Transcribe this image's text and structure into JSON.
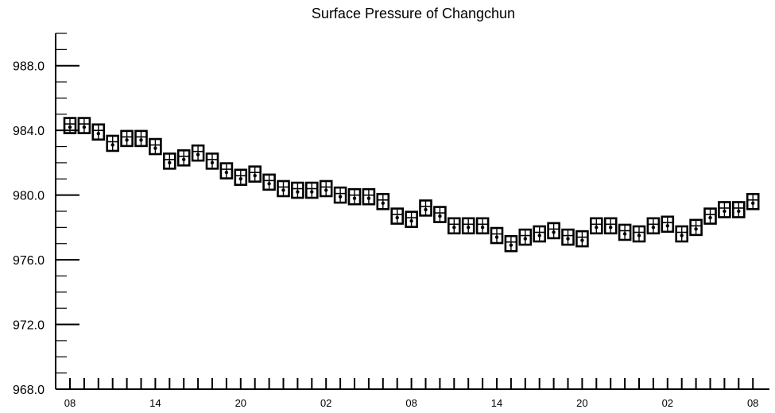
{
  "chart_data": {
    "type": "box",
    "title": "Surface Pressure of Changchun",
    "xlabel": "",
    "ylabel": "",
    "ylim": [
      968.0,
      990.0
    ],
    "yticks": [
      "968.0",
      "972.0",
      "976.0",
      "980.0",
      "984.0",
      "988.0"
    ],
    "xtick_labels": [
      "08",
      "14",
      "20",
      "02",
      "08",
      "14",
      "20",
      "02",
      "08"
    ],
    "xtick_label_index": [
      0,
      6,
      12,
      18,
      24,
      30,
      36,
      42,
      48
    ],
    "n_steps": 49,
    "grid": false,
    "legend": "none",
    "series": [
      {
        "values": [
          984.3,
          984.3,
          983.9,
          983.2,
          983.5,
          983.5,
          983.0,
          982.1,
          982.3,
          982.6,
          982.1,
          981.5,
          981.1,
          981.3,
          980.8,
          980.4,
          980.3,
          980.3,
          980.4,
          980.0,
          979.9,
          979.9,
          979.6,
          978.7,
          978.5,
          979.2,
          978.8,
          978.1,
          978.1,
          978.1,
          977.5,
          977.0,
          977.4,
          977.6,
          977.8,
          977.4,
          977.3,
          978.1,
          978.1,
          977.7,
          977.6,
          978.1,
          978.2,
          977.6,
          978.0,
          978.7,
          979.1,
          979.1,
          979.6
        ]
      }
    ],
    "colors": {
      "box": "#000000",
      "background": "#ffffff"
    }
  }
}
